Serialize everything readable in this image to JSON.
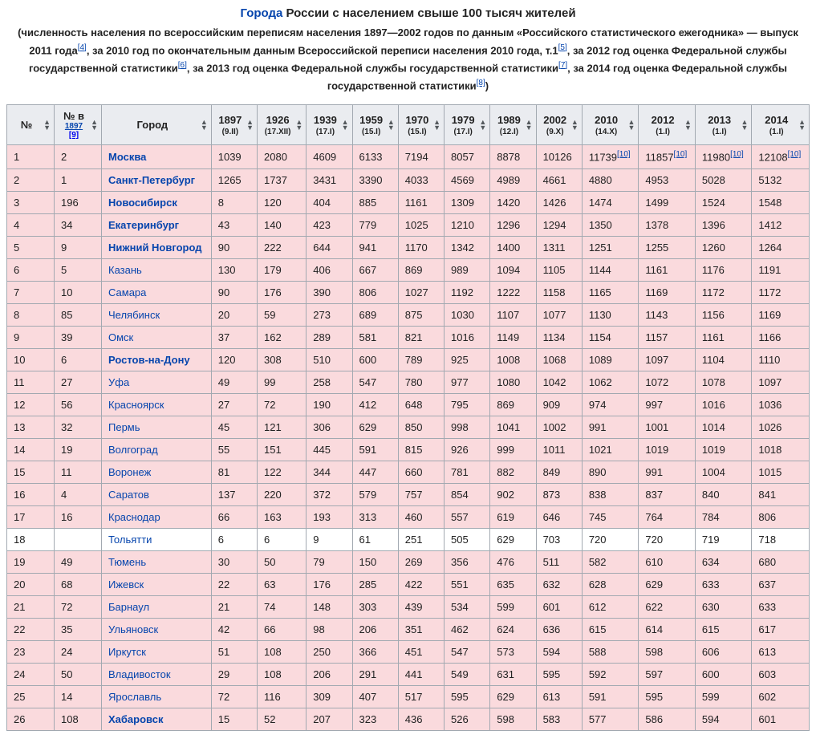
{
  "title_prefix": "Города",
  "title_rest": " России с населением свыше 100 тысяч жителей",
  "intro_parts": [
    "(численность населения по всероссийским переписям населения 1897—2002 годов по данным «Российского статистического ежегодника» — выпуск 2011 года",
    ", за 2010 год по окончательным данным Всероссийской переписи населения 2010 года, т.1",
    ", за 2012 год оценка Федеральной службы государственной статистики",
    ", за 2013 год оценка Федеральной службы государственной статистики",
    ", за 2014 год оценка Федеральной службы государственной статистики",
    ")"
  ],
  "intro_refs": [
    "[4]",
    "[5]",
    "[6]",
    "[7]",
    "[8]"
  ],
  "columns": [
    {
      "main": "№",
      "sub": "",
      "ref": ""
    },
    {
      "main": "№ в",
      "sub": "",
      "ref": "[9]",
      "link": "1897"
    },
    {
      "main": "Город",
      "sub": "",
      "ref": ""
    },
    {
      "main": "1897",
      "sub": "(9.II)",
      "ref": ""
    },
    {
      "main": "1926",
      "sub": "(17.XII)",
      "ref": ""
    },
    {
      "main": "1939",
      "sub": "(17.I)",
      "ref": ""
    },
    {
      "main": "1959",
      "sub": "(15.I)",
      "ref": ""
    },
    {
      "main": "1970",
      "sub": "(15.I)",
      "ref": ""
    },
    {
      "main": "1979",
      "sub": "(17.I)",
      "ref": ""
    },
    {
      "main": "1989",
      "sub": "(12.I)",
      "ref": ""
    },
    {
      "main": "2002",
      "sub": "(9.X)",
      "ref": ""
    },
    {
      "main": "2010",
      "sub": "(14.X)",
      "ref": ""
    },
    {
      "main": "2012",
      "sub": "(1.I)",
      "ref": ""
    },
    {
      "main": "2013",
      "sub": "(1.I)",
      "ref": ""
    },
    {
      "main": "2014",
      "sub": "(1.I)",
      "ref": ""
    }
  ],
  "rows": [
    {
      "n": "1",
      "n1897": "2",
      "city": "Москва",
      "bold": true,
      "pink": true,
      "v": [
        "1039",
        "2080",
        "4609",
        "6133",
        "7194",
        "8057",
        "8878",
        "10126",
        "11739",
        "11857",
        "11980",
        "12108"
      ],
      "ref10": [
        8,
        9,
        10,
        11
      ]
    },
    {
      "n": "2",
      "n1897": "1",
      "city": "Санкт-Петербург",
      "bold": true,
      "pink": true,
      "v": [
        "1265",
        "1737",
        "3431",
        "3390",
        "4033",
        "4569",
        "4989",
        "4661",
        "4880",
        "4953",
        "5028",
        "5132"
      ]
    },
    {
      "n": "3",
      "n1897": "196",
      "city": "Новосибирск",
      "bold": true,
      "pink": true,
      "v": [
        "8",
        "120",
        "404",
        "885",
        "1161",
        "1309",
        "1420",
        "1426",
        "1474",
        "1499",
        "1524",
        "1548"
      ]
    },
    {
      "n": "4",
      "n1897": "34",
      "city": "Екатеринбург",
      "bold": true,
      "pink": true,
      "v": [
        "43",
        "140",
        "423",
        "779",
        "1025",
        "1210",
        "1296",
        "1294",
        "1350",
        "1378",
        "1396",
        "1412"
      ]
    },
    {
      "n": "5",
      "n1897": "9",
      "city": "Нижний Новгород",
      "bold": true,
      "pink": true,
      "v": [
        "90",
        "222",
        "644",
        "941",
        "1170",
        "1342",
        "1400",
        "1311",
        "1251",
        "1255",
        "1260",
        "1264"
      ]
    },
    {
      "n": "6",
      "n1897": "5",
      "city": "Казань",
      "bold": false,
      "pink": true,
      "v": [
        "130",
        "179",
        "406",
        "667",
        "869",
        "989",
        "1094",
        "1105",
        "1144",
        "1161",
        "1176",
        "1191"
      ]
    },
    {
      "n": "7",
      "n1897": "10",
      "city": "Самара",
      "bold": false,
      "pink": true,
      "v": [
        "90",
        "176",
        "390",
        "806",
        "1027",
        "1192",
        "1222",
        "1158",
        "1165",
        "1169",
        "1172",
        "1172"
      ]
    },
    {
      "n": "8",
      "n1897": "85",
      "city": "Челябинск",
      "bold": false,
      "pink": true,
      "v": [
        "20",
        "59",
        "273",
        "689",
        "875",
        "1030",
        "1107",
        "1077",
        "1130",
        "1143",
        "1156",
        "1169"
      ]
    },
    {
      "n": "9",
      "n1897": "39",
      "city": "Омск",
      "bold": false,
      "pink": true,
      "v": [
        "37",
        "162",
        "289",
        "581",
        "821",
        "1016",
        "1149",
        "1134",
        "1154",
        "1157",
        "1161",
        "1166"
      ]
    },
    {
      "n": "10",
      "n1897": "6",
      "city": "Ростов-на-Дону",
      "bold": true,
      "pink": true,
      "v": [
        "120",
        "308",
        "510",
        "600",
        "789",
        "925",
        "1008",
        "1068",
        "1089",
        "1097",
        "1104",
        "1110"
      ]
    },
    {
      "n": "11",
      "n1897": "27",
      "city": "Уфа",
      "bold": false,
      "pink": true,
      "v": [
        "49",
        "99",
        "258",
        "547",
        "780",
        "977",
        "1080",
        "1042",
        "1062",
        "1072",
        "1078",
        "1097"
      ]
    },
    {
      "n": "12",
      "n1897": "56",
      "city": "Красноярск",
      "bold": false,
      "pink": true,
      "v": [
        "27",
        "72",
        "190",
        "412",
        "648",
        "795",
        "869",
        "909",
        "974",
        "997",
        "1016",
        "1036"
      ]
    },
    {
      "n": "13",
      "n1897": "32",
      "city": "Пермь",
      "bold": false,
      "pink": true,
      "v": [
        "45",
        "121",
        "306",
        "629",
        "850",
        "998",
        "1041",
        "1002",
        "991",
        "1001",
        "1014",
        "1026"
      ]
    },
    {
      "n": "14",
      "n1897": "19",
      "city": "Волгоград",
      "bold": false,
      "pink": true,
      "v": [
        "55",
        "151",
        "445",
        "591",
        "815",
        "926",
        "999",
        "1011",
        "1021",
        "1019",
        "1019",
        "1018"
      ]
    },
    {
      "n": "15",
      "n1897": "11",
      "city": "Воронеж",
      "bold": false,
      "pink": true,
      "v": [
        "81",
        "122",
        "344",
        "447",
        "660",
        "781",
        "882",
        "849",
        "890",
        "991",
        "1004",
        "1015"
      ]
    },
    {
      "n": "16",
      "n1897": "4",
      "city": "Саратов",
      "bold": false,
      "pink": true,
      "v": [
        "137",
        "220",
        "372",
        "579",
        "757",
        "854",
        "902",
        "873",
        "838",
        "837",
        "840",
        "841"
      ]
    },
    {
      "n": "17",
      "n1897": "16",
      "city": "Краснодар",
      "bold": false,
      "pink": true,
      "v": [
        "66",
        "163",
        "193",
        "313",
        "460",
        "557",
        "619",
        "646",
        "745",
        "764",
        "784",
        "806"
      ]
    },
    {
      "n": "18",
      "n1897": "",
      "city": "Тольятти",
      "bold": false,
      "pink": false,
      "v": [
        "6",
        "6",
        "9",
        "61",
        "251",
        "505",
        "629",
        "703",
        "720",
        "720",
        "719",
        "718"
      ]
    },
    {
      "n": "19",
      "n1897": "49",
      "city": "Тюмень",
      "bold": false,
      "pink": true,
      "v": [
        "30",
        "50",
        "79",
        "150",
        "269",
        "356",
        "476",
        "511",
        "582",
        "610",
        "634",
        "680"
      ]
    },
    {
      "n": "20",
      "n1897": "68",
      "city": "Ижевск",
      "bold": false,
      "pink": true,
      "v": [
        "22",
        "63",
        "176",
        "285",
        "422",
        "551",
        "635",
        "632",
        "628",
        "629",
        "633",
        "637"
      ]
    },
    {
      "n": "21",
      "n1897": "72",
      "city": "Барнаул",
      "bold": false,
      "pink": true,
      "v": [
        "21",
        "74",
        "148",
        "303",
        "439",
        "534",
        "599",
        "601",
        "612",
        "622",
        "630",
        "633"
      ]
    },
    {
      "n": "22",
      "n1897": "35",
      "city": "Ульяновск",
      "bold": false,
      "pink": true,
      "v": [
        "42",
        "66",
        "98",
        "206",
        "351",
        "462",
        "624",
        "636",
        "615",
        "614",
        "615",
        "617"
      ]
    },
    {
      "n": "23",
      "n1897": "24",
      "city": "Иркутск",
      "bold": false,
      "pink": true,
      "v": [
        "51",
        "108",
        "250",
        "366",
        "451",
        "547",
        "573",
        "594",
        "588",
        "598",
        "606",
        "613"
      ]
    },
    {
      "n": "24",
      "n1897": "50",
      "city": "Владивосток",
      "bold": false,
      "pink": true,
      "v": [
        "29",
        "108",
        "206",
        "291",
        "441",
        "549",
        "631",
        "595",
        "592",
        "597",
        "600",
        "603"
      ]
    },
    {
      "n": "25",
      "n1897": "14",
      "city": "Ярославль",
      "bold": false,
      "pink": true,
      "v": [
        "72",
        "116",
        "309",
        "407",
        "517",
        "595",
        "629",
        "613",
        "591",
        "595",
        "599",
        "602"
      ]
    },
    {
      "n": "26",
      "n1897": "108",
      "city": "Хабаровск",
      "bold": true,
      "pink": true,
      "v": [
        "15",
        "52",
        "207",
        "323",
        "436",
        "526",
        "598",
        "583",
        "577",
        "586",
        "594",
        "601"
      ]
    }
  ],
  "ref10_label": "[10]"
}
